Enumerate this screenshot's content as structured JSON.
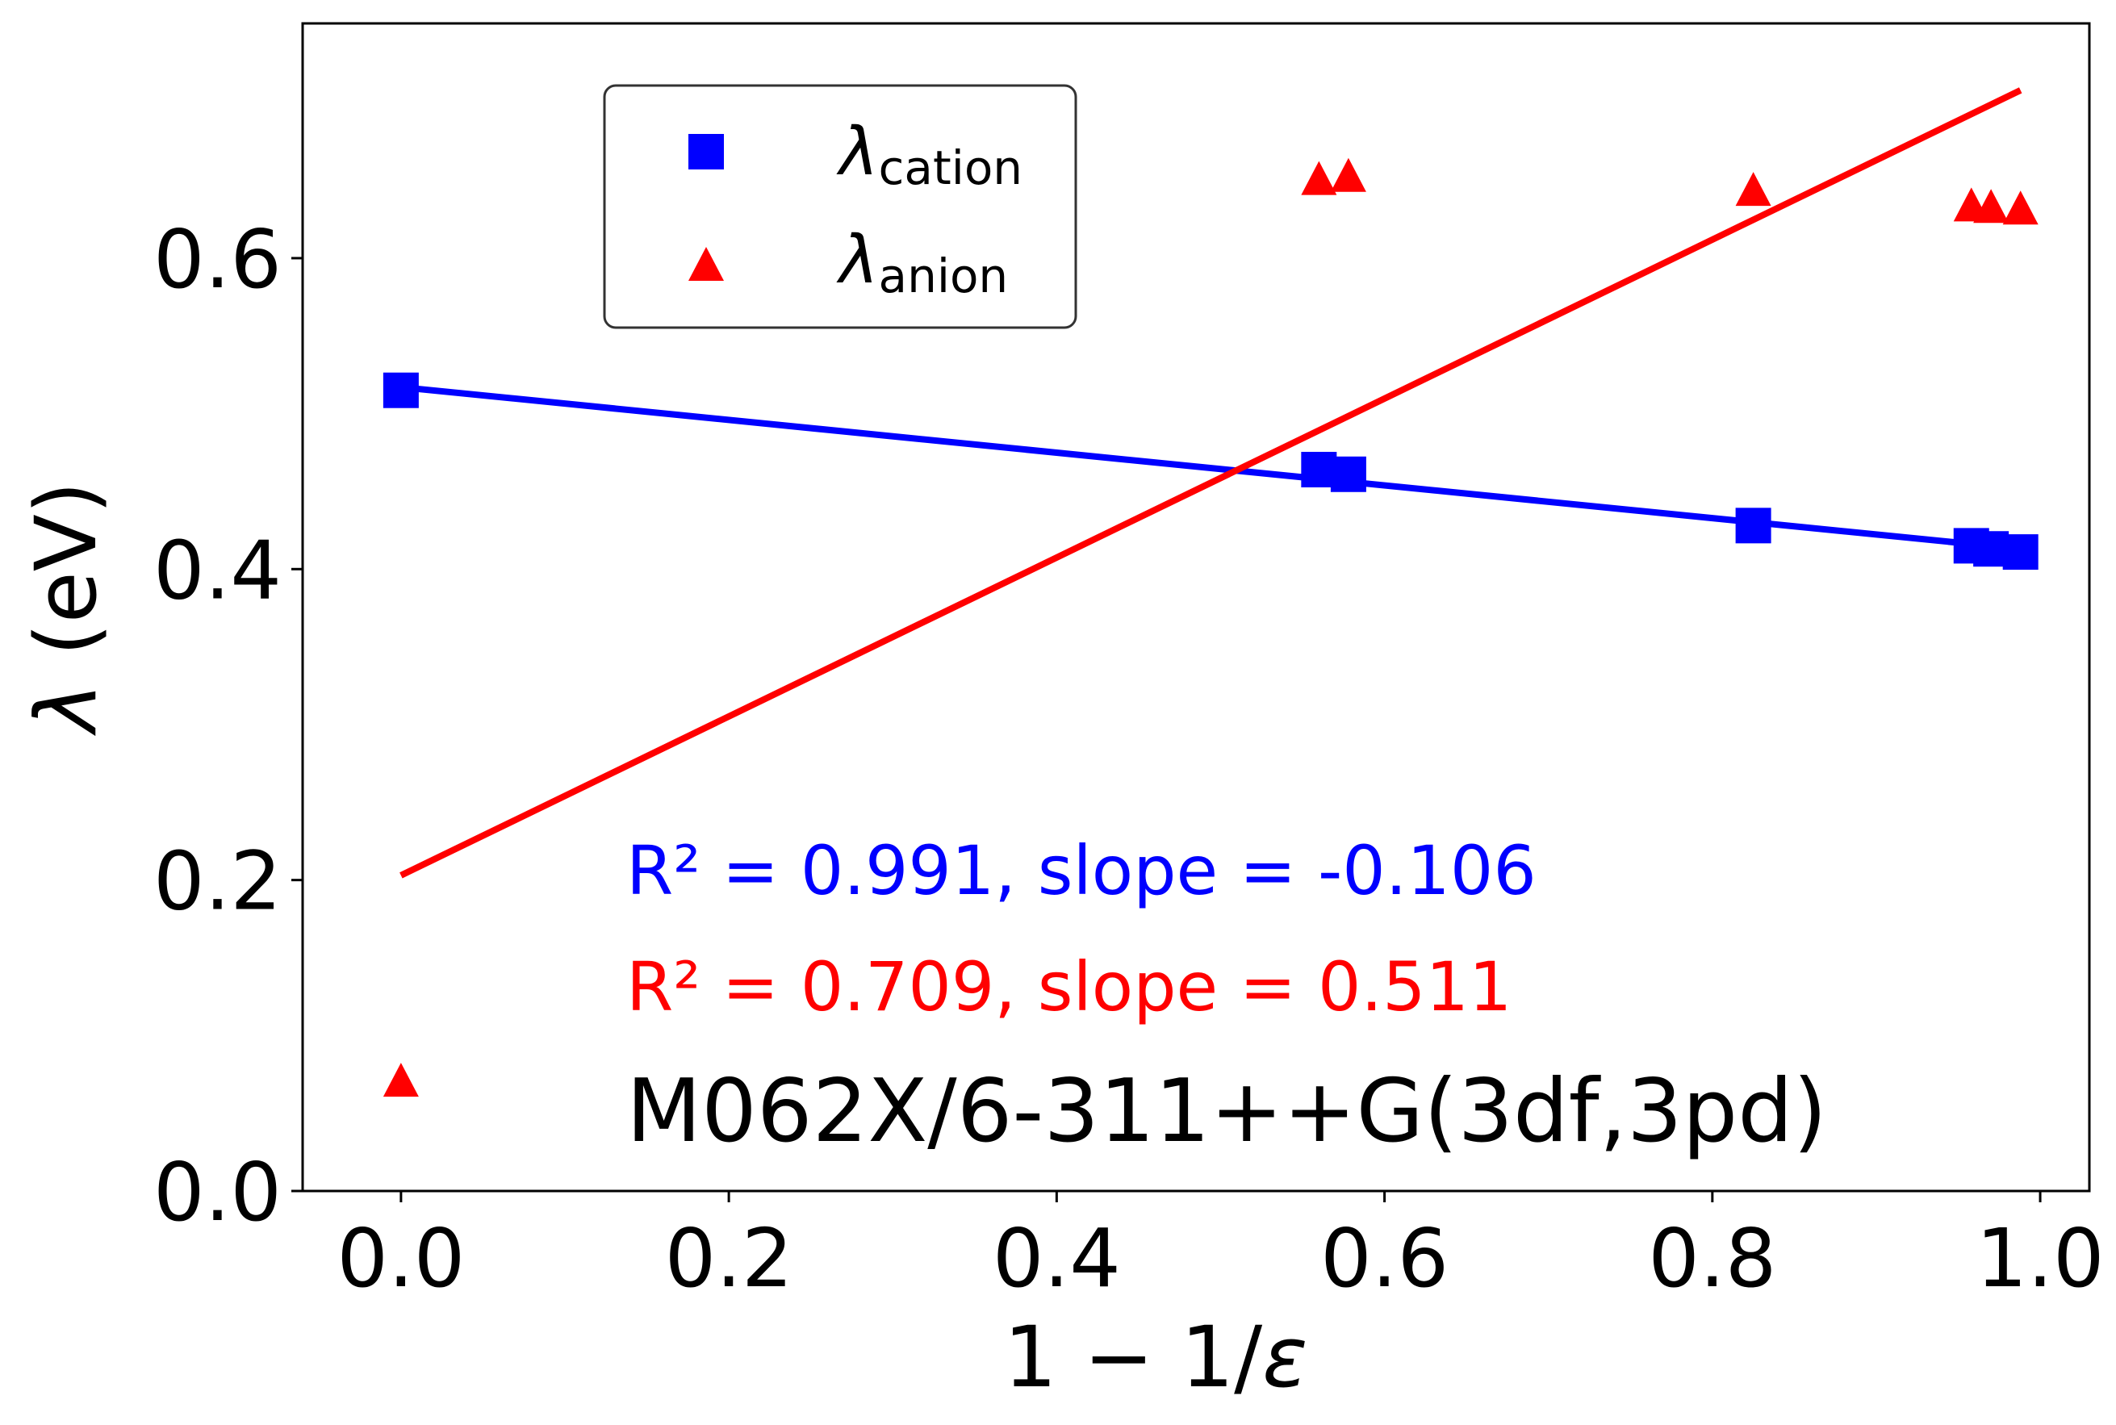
{
  "chart_data": {
    "type": "scatter",
    "xlabel_parts": [
      "1 − 1/",
      "ε"
    ],
    "ylabel_parts": [
      "λ",
      " (eV)"
    ],
    "xlim": [
      -0.06,
      1.03
    ],
    "ylim": [
      0.0,
      0.751
    ],
    "xticks": [
      0.0,
      0.2,
      0.4,
      0.6,
      0.8,
      1.0
    ],
    "xtick_labels": [
      "0.0",
      "0.2",
      "0.4",
      "0.6",
      "0.8",
      "1.0"
    ],
    "yticks": [
      0.0,
      0.2,
      0.4,
      0.6
    ],
    "ytick_labels": [
      "0.0",
      "0.2",
      "0.4",
      "0.6"
    ],
    "grid": false,
    "legend_position": "upper-left",
    "series": [
      {
        "name": "cation",
        "legend_symbol": "λ",
        "legend_subscript": "cation",
        "marker": "square",
        "color": "#0000ff",
        "x": [
          0.0,
          0.56,
          0.578,
          0.825,
          0.958,
          0.97,
          0.988
        ],
        "y": [
          0.515,
          0.464,
          0.461,
          0.428,
          0.415,
          0.413,
          0.411
        ],
        "fit": {
          "slope": -0.106,
          "r2": 0.991,
          "x0": 0.0,
          "y0": 0.517,
          "x1": 0.988,
          "y1": 0.413
        }
      },
      {
        "name": "anion",
        "legend_symbol": "λ",
        "legend_subscript": "anion",
        "marker": "triangle",
        "color": "#ff0000",
        "x": [
          0.0,
          0.56,
          0.578,
          0.825,
          0.958,
          0.97,
          0.988
        ],
        "y": [
          0.07,
          0.65,
          0.652,
          0.643,
          0.633,
          0.632,
          0.631
        ],
        "fit": {
          "slope": 0.511,
          "r2": 0.709,
          "x0": 0.0,
          "y0": 0.203,
          "x1": 0.988,
          "y1": 0.708
        }
      }
    ],
    "annotations": {
      "cation_fit": "R² = 0.991, slope = -0.106",
      "anion_fit": "R² = 0.709, slope = 0.511",
      "method": "M062X/6-311++G(3df,3pd)"
    }
  }
}
